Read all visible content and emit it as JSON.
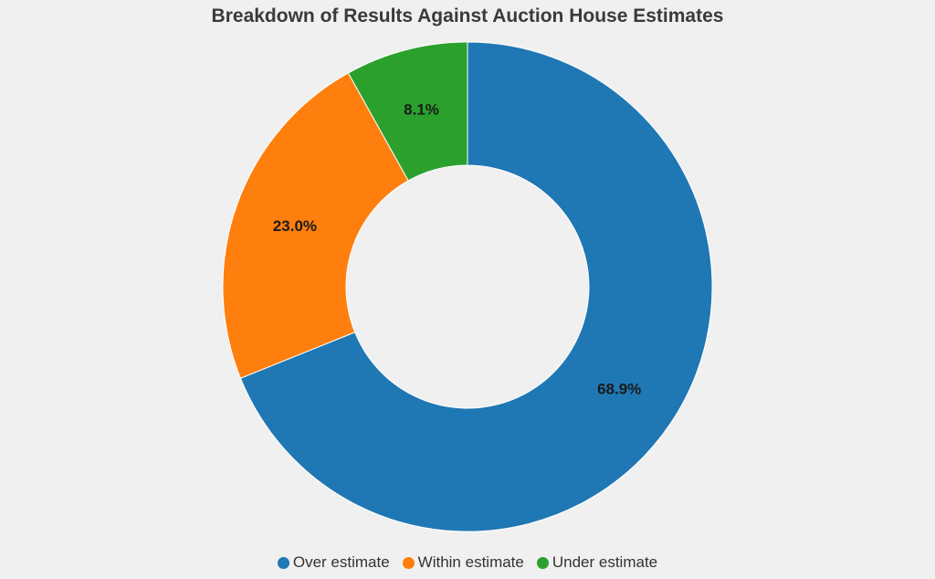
{
  "chart_data": {
    "type": "pie",
    "title": "Breakdown of Results Against Auction House Estimates",
    "donut": true,
    "legend_position": "bottom",
    "categories": [
      "Over estimate",
      "Within estimate",
      "Under estimate"
    ],
    "values": [
      68.9,
      23.0,
      8.1
    ],
    "value_labels": [
      "68.9%",
      "23.0%",
      "8.1%"
    ],
    "colors": [
      "#1f77b4",
      "#ff7f0e",
      "#2ca02c"
    ]
  }
}
